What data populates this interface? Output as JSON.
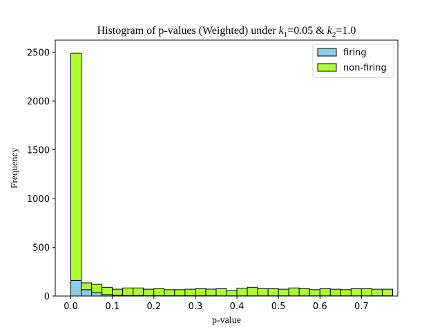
{
  "chart_data": {
    "type": "bar",
    "stacked": true,
    "title": {
      "prefix": "Histogram of p-values (Weighted) under ",
      "k1_symbol": "k",
      "k1_sub": "1",
      "k1_value": "=0.05 & ",
      "k2_symbol": "k",
      "k2_sub": "2",
      "k2_value": "=1.0"
    },
    "xlabel": "p-value",
    "ylabel": "Frequency",
    "xlim": [
      -0.0375,
      0.7875
    ],
    "ylim": [
      0,
      2625
    ],
    "xticks": [
      0.0,
      0.1,
      0.2,
      0.3,
      0.4,
      0.5,
      0.6,
      0.7
    ],
    "xtick_labels": [
      "0.0",
      "0.1",
      "0.2",
      "0.3",
      "0.4",
      "0.5",
      "0.6",
      "0.7"
    ],
    "yticks": [
      0,
      500,
      1000,
      1500,
      2000,
      2500
    ],
    "ytick_labels": [
      "0",
      "500",
      "1000",
      "1500",
      "2000",
      "2500"
    ],
    "bin_width": 0.025,
    "bins_start": 0.0,
    "legend_position": "top-right",
    "grid": false,
    "series": [
      {
        "name": "firing",
        "color": "#87CEEB",
        "values": [
          160,
          65,
          35,
          15,
          8,
          5,
          5,
          3,
          3,
          3,
          3,
          3,
          3,
          3,
          2,
          2,
          2,
          2,
          2,
          2,
          2,
          2,
          2,
          2,
          2,
          2,
          2,
          2,
          2,
          2,
          2
        ]
      },
      {
        "name": "non-firing",
        "color": "#ADFF2F",
        "values": [
          2330,
          70,
          85,
          75,
          62,
          78,
          78,
          67,
          73,
          62,
          62,
          67,
          73,
          68,
          73,
          53,
          78,
          88,
          73,
          73,
          68,
          81,
          73,
          63,
          73,
          68,
          63,
          73,
          73,
          68,
          68
        ]
      }
    ]
  }
}
